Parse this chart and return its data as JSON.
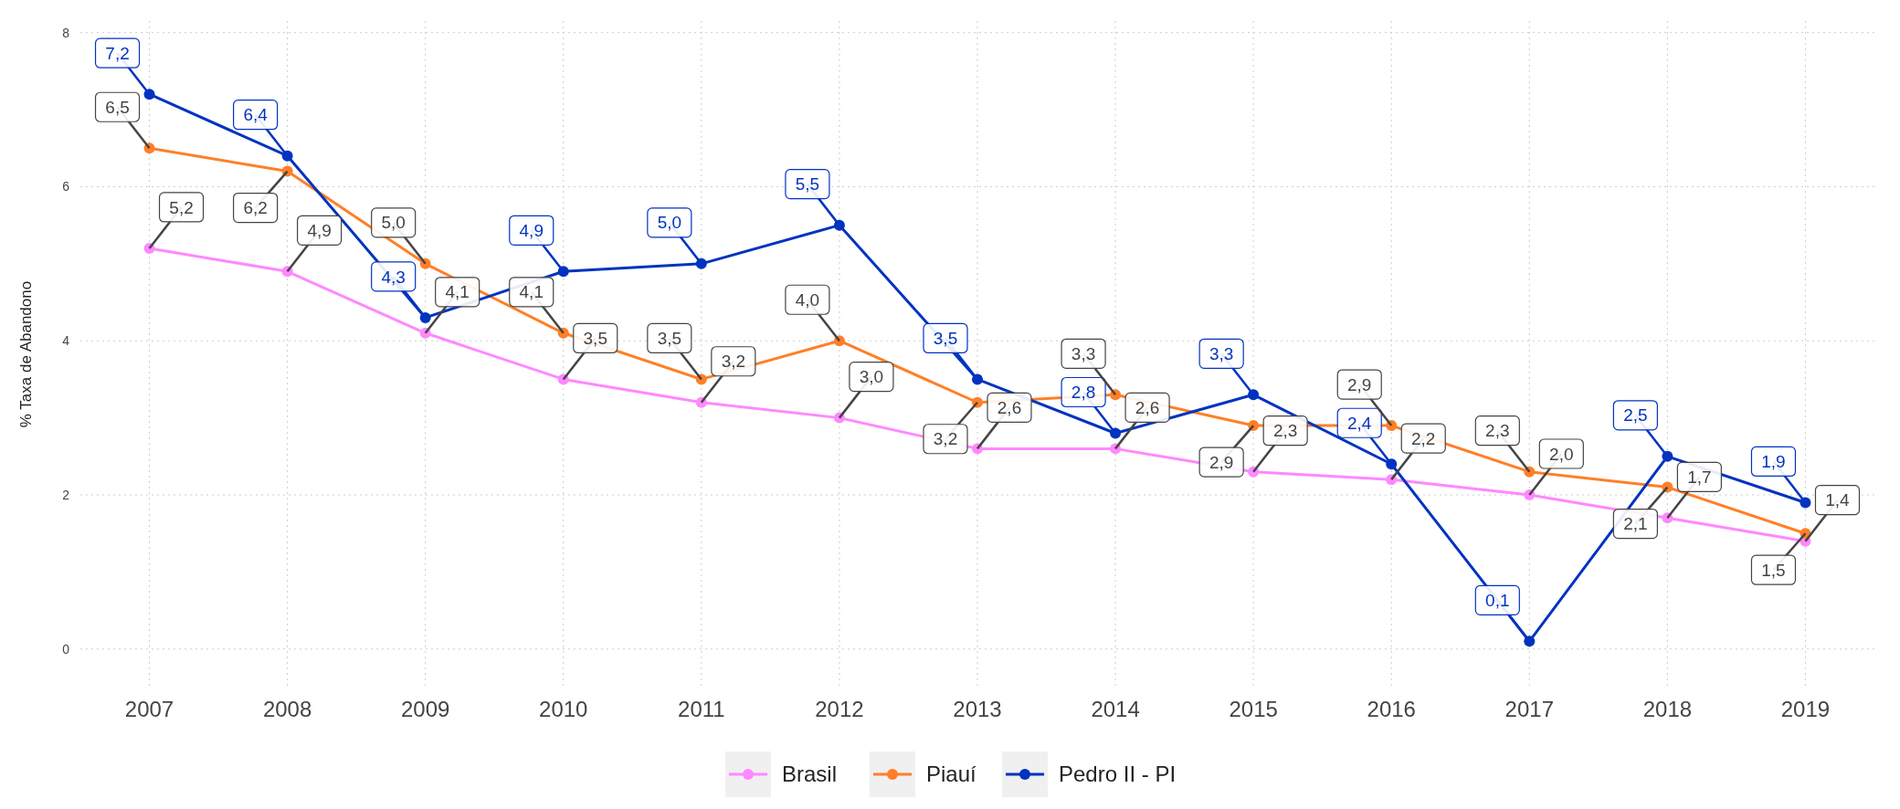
{
  "chart_data": {
    "type": "line",
    "ylabel": "% Taxa de Abandono",
    "categories": [
      "2007",
      "2008",
      "2009",
      "2010",
      "2011",
      "2012",
      "2013",
      "2014",
      "2015",
      "2016",
      "2017",
      "2018",
      "2019"
    ],
    "ylim": [
      -0.5,
      8.15
    ],
    "yticks": [
      0,
      2,
      4,
      6,
      8
    ],
    "grid": true,
    "legend": "bottom",
    "marker": "circle",
    "line_style": "solid",
    "series": [
      {
        "name": "Brasil",
        "color": "#ff88ff",
        "values": [
          5.2,
          4.9,
          4.1,
          3.5,
          3.2,
          3.0,
          2.6,
          2.6,
          2.3,
          2.2,
          2.0,
          1.7,
          1.4
        ],
        "value_labels": [
          "5,2",
          "4,9",
          "4,1",
          "3,5",
          "3,2",
          "3,0",
          "2,6",
          "2,6",
          "2,3",
          "2,2",
          "2,0",
          "1,7",
          "1,4"
        ]
      },
      {
        "name": "Piauí",
        "color": "#ff7f27",
        "values": [
          6.5,
          6.2,
          5.0,
          4.1,
          3.5,
          4.0,
          3.2,
          3.3,
          2.9,
          2.9,
          2.3,
          2.1,
          1.5
        ],
        "value_labels": [
          "6,5",
          "6,2",
          "5,0",
          "4,1",
          "3,5",
          "4,0",
          "3,2",
          "3,3",
          "2,9",
          "2,9",
          "2,3",
          "2,1",
          "1,5"
        ]
      },
      {
        "name": "Pedro II - PI",
        "color": "#0033c0",
        "values": [
          7.2,
          6.4,
          4.3,
          4.9,
          5.0,
          5.5,
          3.5,
          2.8,
          3.3,
          2.4,
          0.1,
          2.5,
          1.9
        ],
        "value_labels": [
          "7,2",
          "6,4",
          "4,3",
          "4,9",
          "5,0",
          "5,5",
          "3,5",
          "2,8",
          "3,3",
          "2,4",
          "0,1",
          "2,5",
          "1,9"
        ]
      }
    ]
  }
}
